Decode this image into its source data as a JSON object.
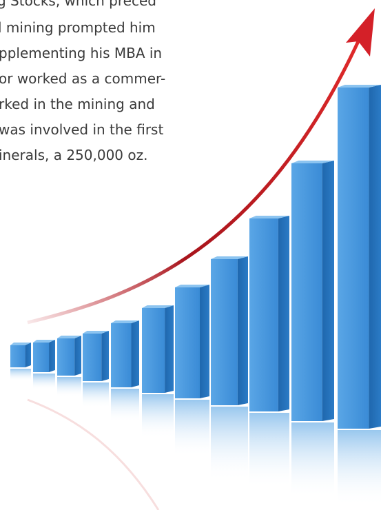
{
  "text": {
    "lines": [
      "g Stocks, which preced",
      "l mining prompted him",
      "pplementing his MBA in",
      "or worked as a commer-",
      "rked in the mining and",
      "was involved in the first",
      "inerals, a 250,000 oz."
    ]
  }
}
